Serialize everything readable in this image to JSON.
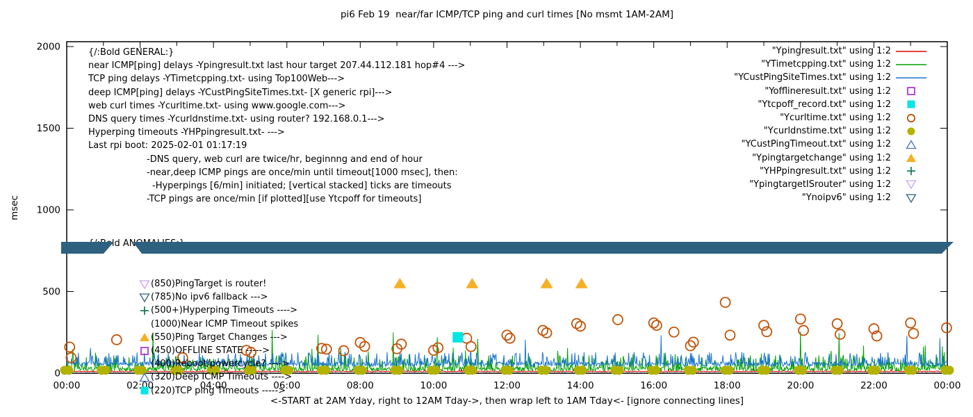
{
  "title": "pi6 Feb 19  near/far ICMP/TCP ping and curl times [No msmt 1AM-2AM]",
  "ylabel": "msec",
  "xlabel": "<-START at 2AM Yday, right to 12AM Tday->, then wrap left to 1AM Tday<- [ignore connecting lines]",
  "colors": {
    "red": "#e60000",
    "green": "#00a000",
    "blue": "#1874cd",
    "magenta": "#b136d9",
    "cyan": "#00e5e5",
    "orange_brown": "#c25408",
    "olive": "#b2b200",
    "blue_open": "#4472c4",
    "orange": "#f5b026",
    "green_plus": "#00704e",
    "violet": "#c9a0f5",
    "teal": "#2e617f",
    "black": "#000000"
  },
  "general_block": {
    "lines": [
      {
        "text": "{/:Bold GENERAL:}",
        "indent": 0
      },
      {
        "text": "near ICMP[ping] delays -Ypingresult.txt last hour target 207.44.112.181 hop#4 --->",
        "indent": 0
      },
      {
        "text": "TCP ping delays -YTimetcpping.txt- using Top100Web--->",
        "indent": 0
      },
      {
        "text": "deep ICMP[ping] delays -YCustPingSiteTimes.txt- [X generic rpi]--->",
        "indent": 0
      },
      {
        "text": "web curl times -Ycurltime.txt- using www.google.com--->",
        "indent": 0
      },
      {
        "text": "DNS query times -Ycurldnstime.txt- using router? 192.168.0.1--->",
        "indent": 0
      },
      {
        "text": "Hyperping timeouts -YHPpingresult.txt- --->",
        "indent": 0
      },
      {
        "text": "Last rpi boot: 2025-02-01 01:17:19",
        "indent": 0
      },
      {
        "text": "-DNS query, web curl are twice/hr, beginnng and end of hour",
        "indent": 84
      },
      {
        "text": "-near,deep ICMP pings are once/min until timeout[1000 msec], then:",
        "indent": 84
      },
      {
        "text": "-Hyperpings [6/min] initiated; [vertical stacked] ticks are timeouts",
        "indent": 92
      },
      {
        "text": "-TCP pings are once/min [if plotted][use Ytcpoff for timeouts]",
        "indent": 84
      }
    ]
  },
  "anomalies_block": {
    "header": "{/:Bold ANOMALIES:}",
    "rows": [
      {
        "marker": "tri-down-violet",
        "text": "(850)PingTarget is router!",
        "behind_band": false
      },
      {
        "marker": "tri-down-teal",
        "text": "(785)No ipv6 fallback --->",
        "behind_band": true
      },
      {
        "marker": "plus-green",
        "text": "(500+)Hyperping Timeouts ---->",
        "behind_band": false
      },
      {
        "marker": null,
        "text": "(1000)Near ICMP Timeout spikes",
        "behind_band": false
      },
      {
        "marker": "tri-up-orange",
        "text": "(550)Ping Target Changes --->",
        "behind_band": false
      },
      {
        "marker": "square-open-magenta",
        "text": "(450)OFFLINE STATE ----->",
        "behind_band": false
      },
      {
        "marker": null,
        "text": "(400)Reboot/powercycle? ---->",
        "behind_band": false
      },
      {
        "marker": "tri-up-open-blue",
        "text": "(320)Deep ICMP Timeouts ---->",
        "behind_band": false
      },
      {
        "marker": "square-cyan",
        "text": "(220)TCP ping Timeouts ----->",
        "behind_band": false
      }
    ]
  },
  "legend": {
    "items": [
      {
        "label": "\"Ypingresult.txt\" using 1:2",
        "marker": "line-red"
      },
      {
        "label": "\"YTimetcpping.txt\" using 1:2",
        "marker": "line-green"
      },
      {
        "label": "\"YCustPingSiteTimes.txt\" using 1:2",
        "marker": "line-blue"
      },
      {
        "label": "\"Yofflineresult.txt\" using 1:2",
        "marker": "square-open-magenta"
      },
      {
        "label": "\"Ytcpoff_record.txt\" using 1:2",
        "marker": "square-cyan"
      },
      {
        "label": "\"Ycurltime.txt\" using 1:2",
        "marker": "circle-open-orange"
      },
      {
        "label": "\"Ycurldnstime.txt\" using 1:2",
        "marker": "circle-olive"
      },
      {
        "label": "\"YCustPingTimeout.txt\" using 1:2",
        "marker": "tri-up-open-blue"
      },
      {
        "label": "\"Ypingtargetchange\" using 1:2",
        "marker": "tri-up-orange"
      },
      {
        "label": "\"YHPpingresult.txt\" using 1:2",
        "marker": "plus-green"
      },
      {
        "label": "\"YpingtargetISrouter\" using 1:2",
        "marker": "tri-down-violet"
      },
      {
        "label": "\"Ynoipv6\" using 1:2",
        "marker": "tri-down-teal"
      }
    ]
  },
  "chart_data": {
    "type": "line",
    "title": "pi6 Feb 19  near/far ICMP/TCP ping and curl times [No msmt 1AM-2AM]",
    "xlabel": "<-START at 2AM Yday, right to 12AM Tday->, then wrap left to 1AM Tday<- [ignore connecting lines]",
    "ylabel": "msec",
    "x_axis": {
      "unit": "hours",
      "range": [
        0,
        24
      ],
      "minor_tick_hours": 1,
      "label_every_hours": 2,
      "tick_labels": [
        "00:00",
        "02:00",
        "04:00",
        "06:00",
        "08:00",
        "10:00",
        "12:00",
        "14:00",
        "16:00",
        "18:00",
        "20:00",
        "22:00",
        "00:00"
      ]
    },
    "y_axis": {
      "range": [
        0,
        2000
      ],
      "ticks": [
        0,
        500,
        1000,
        1500,
        2000
      ]
    },
    "line_series": [
      {
        "name": "Ypingresult.txt",
        "color_key": "red",
        "seed": 11,
        "noise": {
          "base": 8,
          "amp": 6,
          "spike_freq": 0.02,
          "spike_base": 16,
          "spike_amp": 12
        },
        "spikes": []
      },
      {
        "name": "YTimetcpping.txt",
        "color_key": "green",
        "seed": 22,
        "noise": {
          "base": 12,
          "amp": 26,
          "spike_freq": 0.22,
          "spike_base": 40,
          "spike_amp": 70,
          "big_freq": 0.018,
          "big_base": 110,
          "big_amp": 60
        },
        "spikes": [
          [
            2.35,
            250
          ],
          [
            5.6,
            265
          ],
          [
            6.85,
            235
          ],
          [
            8.9,
            250
          ],
          [
            10.1,
            220
          ],
          [
            11.2,
            210
          ],
          [
            20.0,
            255
          ],
          [
            21.05,
            245
          ],
          [
            23.4,
            170
          ]
        ]
      },
      {
        "name": "YCustPingSiteTimes.txt",
        "color_key": "blue",
        "seed": 33,
        "noise": {
          "base": 42,
          "amp": 28,
          "spike_freq": 0.18,
          "spike_base": 75,
          "spike_amp": 55
        },
        "spikes": [
          [
            0.65,
            155
          ],
          [
            12.5,
            205
          ],
          [
            16.2,
            232
          ],
          [
            22.9,
            228
          ],
          [
            23.8,
            215
          ]
        ]
      }
    ],
    "scatter_series": [
      {
        "name": "Ycurltime.txt",
        "marker": "circle-open-orange",
        "points": [
          [
            0.08,
            160
          ],
          [
            0.12,
            95
          ],
          [
            1.36,
            205
          ],
          [
            3.16,
            95
          ],
          [
            4.9,
            140
          ],
          [
            5.02,
            128
          ],
          [
            6.95,
            152
          ],
          [
            7.08,
            147
          ],
          [
            7.55,
            138
          ],
          [
            8.0,
            188
          ],
          [
            8.12,
            164
          ],
          [
            9.0,
            150
          ],
          [
            9.12,
            178
          ],
          [
            10.0,
            140
          ],
          [
            10.12,
            156
          ],
          [
            10.9,
            214
          ],
          [
            11.02,
            163
          ],
          [
            12.0,
            233
          ],
          [
            12.08,
            214
          ],
          [
            12.98,
            262
          ],
          [
            13.08,
            247
          ],
          [
            13.9,
            304
          ],
          [
            14.0,
            288
          ],
          [
            15.02,
            328
          ],
          [
            16.0,
            308
          ],
          [
            16.08,
            293
          ],
          [
            16.55,
            252
          ],
          [
            17.0,
            168
          ],
          [
            17.08,
            190
          ],
          [
            17.95,
            434
          ],
          [
            18.08,
            233
          ],
          [
            19.0,
            293
          ],
          [
            19.08,
            254
          ],
          [
            20.0,
            332
          ],
          [
            20.08,
            262
          ],
          [
            21.0,
            303
          ],
          [
            21.08,
            238
          ],
          [
            22.0,
            272
          ],
          [
            22.08,
            228
          ],
          [
            23.0,
            308
          ],
          [
            23.08,
            243
          ],
          [
            23.98,
            278
          ]
        ]
      },
      {
        "name": "Ycurldnstime.txt",
        "marker": "circle-olive",
        "value_msec": 18,
        "hourly_pairs": true,
        "hours": [
          0,
          1,
          2,
          3,
          4,
          5,
          6,
          7,
          8,
          9,
          10,
          11,
          12,
          13,
          14,
          15,
          16,
          17,
          18,
          19,
          20,
          21,
          22,
          23,
          24
        ]
      },
      {
        "name": "Ytcpoff_record.txt",
        "marker": "square-cyan",
        "points": [
          [
            10.66,
            220
          ]
        ]
      },
      {
        "name": "Ypingtargetchange",
        "marker": "tri-up-orange",
        "points": [
          [
            9.08,
            550
          ],
          [
            11.05,
            550
          ],
          [
            13.08,
            550
          ],
          [
            14.03,
            550
          ]
        ]
      }
    ],
    "band": {
      "name": "Ynoipv6",
      "marker": "tri-down-teal",
      "value_msec": 785,
      "gap_hours": [
        1.23,
        1.8
      ],
      "note": "dense per-minute down-triangles forming a solid band; gap = no msmt 1AM-2AM"
    }
  }
}
